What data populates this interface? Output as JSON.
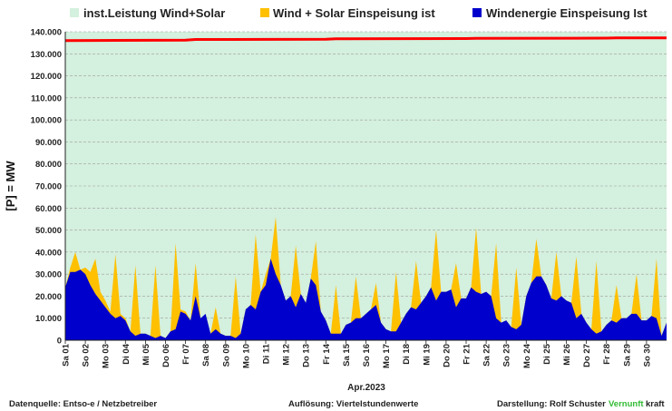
{
  "colors": {
    "installed": "#d4f0de",
    "wind_solar": "#ffc000",
    "wind": "#0000cc",
    "red_line": "#ff0000",
    "grid": "#9e9e9e",
    "brand_green": "#33bb33"
  },
  "legend": {
    "installed": "inst.Leistung Wind+Solar",
    "wind_solar": "Wind + Solar Einspeisung ist",
    "wind": "Windenergie Einspeisung Ist"
  },
  "footer": {
    "source": "Datenquelle:  Entso-e  / Netzbetreiber",
    "resolution": "Auflösung: Viertelstundenwerte",
    "author": "Darstellung:  Rolf Schuster",
    "brand_a": "Vernunft",
    "brand_b": "kraft"
  },
  "chart_data": {
    "type": "area",
    "ylabel": "[P] =   MW",
    "xlabel": "Apr.2023",
    "ylim": [
      0,
      140000
    ],
    "yticks": [
      "0",
      "10.000",
      "20.000",
      "30.000",
      "40.000",
      "50.000",
      "60.000",
      "70.000",
      "80.000",
      "90.000",
      "100.000",
      "110.000",
      "120.000",
      "130.000",
      "140.000"
    ],
    "x_tick_labels": [
      "Sa 01",
      "So 02",
      "Mo 03",
      "Di 04",
      "Mi 05",
      "Do 06",
      "Fr 07",
      "Sa 08",
      "So 09",
      "Mo 10",
      "Di 11",
      "Mi 12",
      "Do 13",
      "Fr 14",
      "Sa 15",
      "So 16",
      "Mo 17",
      "Di 18",
      "Mi 19",
      "Do 20",
      "Fr 21",
      "Sa 22",
      "So 23",
      "Mo 24",
      "Di 25",
      "Mi 26",
      "Do 27",
      "Fr 28",
      "Sa 29",
      "So 30"
    ],
    "grid": true,
    "legend_position": "top",
    "x_days": [
      0,
      0.25,
      0.5,
      0.75,
      1,
      1.25,
      1.5,
      1.75,
      2,
      2.25,
      2.5,
      2.75,
      3,
      3.25,
      3.5,
      3.75,
      4,
      4.25,
      4.5,
      4.75,
      5,
      5.25,
      5.5,
      5.75,
      6,
      6.25,
      6.5,
      6.75,
      7,
      7.25,
      7.5,
      7.75,
      8,
      8.25,
      8.5,
      8.75,
      9,
      9.25,
      9.5,
      9.75,
      10,
      10.25,
      10.5,
      10.75,
      11,
      11.25,
      11.5,
      11.75,
      12,
      12.25,
      12.5,
      12.75,
      13,
      13.25,
      13.5,
      13.75,
      14,
      14.25,
      14.5,
      14.75,
      15,
      15.25,
      15.5,
      15.75,
      16,
      16.25,
      16.5,
      16.75,
      17,
      17.25,
      17.5,
      17.75,
      18,
      18.25,
      18.5,
      18.75,
      19,
      19.25,
      19.5,
      19.75,
      20,
      20.25,
      20.5,
      20.75,
      21,
      21.25,
      21.5,
      21.75,
      22,
      22.25,
      22.5,
      22.75,
      23,
      23.25,
      23.5,
      23.75,
      24,
      24.25,
      24.5,
      24.75,
      25,
      25.25,
      25.5,
      25.75,
      26,
      26.25,
      26.5,
      26.75,
      27,
      27.25,
      27.5,
      27.75,
      28,
      28.25,
      28.5,
      28.75,
      29,
      29.25,
      29.5,
      29.75,
      30
    ],
    "series": [
      {
        "name": "inst.Leistung Wind+Solar",
        "type": "line",
        "x": [
          0,
          6,
          6.5,
          13,
          13.5,
          20,
          20.5,
          27,
          27.5,
          30
        ],
        "values": [
          136000,
          136200,
          136500,
          136600,
          136800,
          136900,
          137000,
          137100,
          137200,
          137200
        ]
      },
      {
        "name": "Wind + Solar Einspeisung ist",
        "values": [
          24000,
          33000,
          40000,
          32000,
          33000,
          31000,
          37000,
          22000,
          18000,
          13000,
          39000,
          12000,
          10000,
          4000,
          34000,
          3000,
          3000,
          2000,
          34000,
          2000,
          1000,
          4000,
          44000,
          14000,
          13000,
          9000,
          35000,
          10000,
          5000,
          3000,
          15000,
          3000,
          2000,
          2000,
          29000,
          3000,
          14000,
          16000,
          48000,
          22000,
          30000,
          37000,
          56000,
          25000,
          18000,
          20000,
          43000,
          21000,
          17000,
          28000,
          45000,
          13000,
          9000,
          3000,
          25000,
          3000,
          7000,
          8000,
          29000,
          10000,
          12000,
          14000,
          26000,
          8000,
          5000,
          4000,
          31000,
          8000,
          12000,
          15000,
          36000,
          17000,
          20000,
          24000,
          50000,
          22000,
          22000,
          23000,
          35000,
          19000,
          19000,
          24000,
          51000,
          21000,
          22000,
          20000,
          44000,
          8000,
          9000,
          6000,
          33000,
          7000,
          20000,
          26000,
          46000,
          29000,
          25000,
          19000,
          40000,
          20000,
          18000,
          17000,
          38000,
          12000,
          8000,
          5000,
          36000,
          4000,
          7000,
          9000,
          25000,
          10000,
          10000,
          12000,
          30000,
          9000,
          9000,
          11000,
          37000,
          2000,
          8000
        ]
      },
      {
        "name": "Windenergie Einspeisung Ist",
        "values": [
          24000,
          31000,
          31000,
          32000,
          30000,
          25000,
          21000,
          18000,
          15000,
          12000,
          10000,
          11000,
          9000,
          4000,
          2000,
          3000,
          3000,
          2000,
          1000,
          2000,
          1000,
          4000,
          5000,
          13000,
          12000,
          9000,
          20000,
          10000,
          12000,
          3000,
          5000,
          3000,
          2000,
          2000,
          1000,
          3000,
          14000,
          16000,
          14000,
          22000,
          25000,
          37000,
          30000,
          25000,
          18000,
          20000,
          15000,
          21000,
          17000,
          28000,
          25000,
          13000,
          9000,
          3000,
          3000,
          3000,
          7000,
          8000,
          10000,
          10000,
          12000,
          14000,
          16000,
          8000,
          5000,
          4000,
          4000,
          8000,
          12000,
          15000,
          14000,
          17000,
          20000,
          24000,
          18000,
          22000,
          22000,
          23000,
          15000,
          19000,
          19000,
          24000,
          22000,
          21000,
          22000,
          20000,
          10000,
          8000,
          9000,
          6000,
          5000,
          7000,
          20000,
          26000,
          29000,
          29000,
          25000,
          19000,
          18000,
          20000,
          18000,
          17000,
          10000,
          12000,
          8000,
          5000,
          3000,
          4000,
          7000,
          9000,
          8000,
          10000,
          10000,
          12000,
          12000,
          9000,
          9000,
          11000,
          10000,
          2000,
          8000
        ]
      }
    ]
  }
}
